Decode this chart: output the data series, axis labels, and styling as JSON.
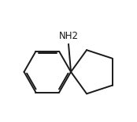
{
  "background_color": "#ffffff",
  "line_color": "#1a1a1a",
  "line_width": 1.4,
  "font_size": 8.5,
  "nh2_label": "NH2",
  "figsize": [
    1.74,
    1.54
  ],
  "dpi": 100,
  "xlim": [
    0.0,
    1.0
  ],
  "ylim": [
    0.05,
    1.05
  ]
}
